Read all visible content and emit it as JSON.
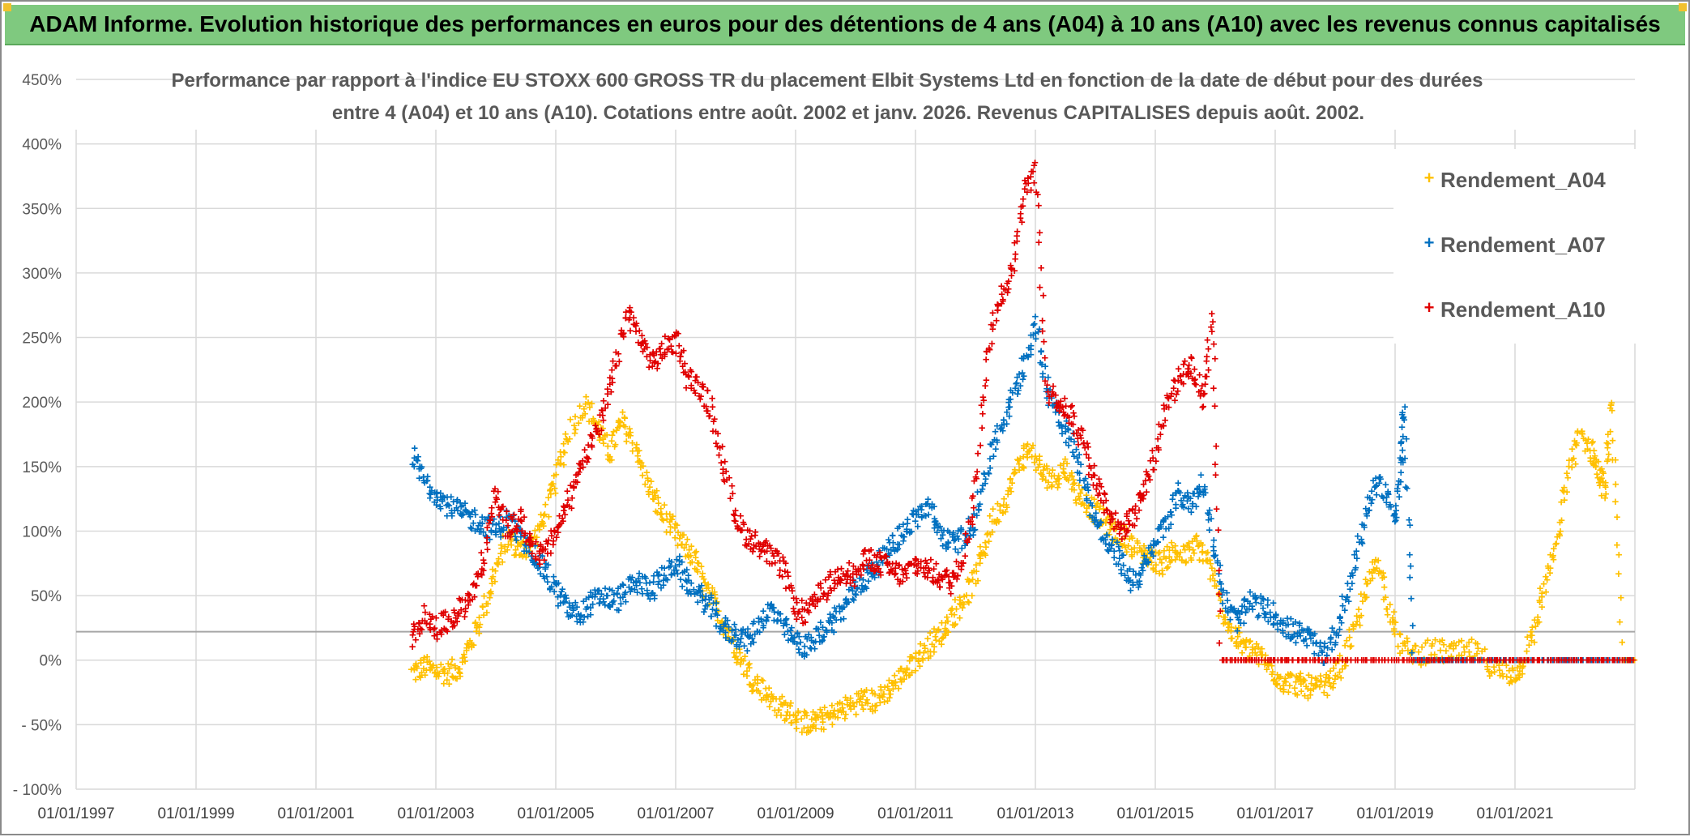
{
  "banner": {
    "title": "ADAM Informe. Evolution historique des performances en euros pour des détentions de 4 ans (A04) à 10 ans (A10) avec les revenus connus capitalisés"
  },
  "colors": {
    "banner_bg": "#7fc97f",
    "A04": "#ffc000",
    "A07": "#0070c0",
    "A10": "#e00000",
    "grid": "#d9d9d9",
    "reference_line": "#a6a6a6"
  },
  "chart_data": {
    "type": "scatter",
    "title_line1": "Performance par rapport à l'indice EU STOXX 600 GROSS TR  du placement Elbit Systems Ltd en fonction de la date de début pour des durées",
    "title_line2": "entre 4 (A04) et 10 ans (A10). Cotations entre août. 2002 et janv. 2026. Revenus CAPITALISES depuis août. 2002.",
    "xlabel": "",
    "ylabel": "",
    "x_range": [
      1997.0,
      2023.0
    ],
    "x_ticks": [
      1997,
      1999,
      2001,
      2003,
      2005,
      2007,
      2009,
      2011,
      2013,
      2015,
      2017,
      2019,
      2021
    ],
    "x_tick_labels": [
      "01/01/1997",
      "01/01/1999",
      "01/01/2001",
      "01/01/2003",
      "01/01/2005",
      "01/01/2007",
      "01/01/2009",
      "01/01/2011",
      "01/01/2013",
      "01/01/2015",
      "01/01/2017",
      "01/01/2019",
      "01/01/2021"
    ],
    "ylim": [
      -100,
      450
    ],
    "y_ticks": [
      -100,
      -50,
      0,
      50,
      100,
      150,
      200,
      250,
      300,
      350,
      400,
      450
    ],
    "y_tick_labels": [
      "- 100%",
      "- 50%",
      "0%",
      "50%",
      "100%",
      "150%",
      "200%",
      "250%",
      "300%",
      "350%",
      "400%",
      "450%"
    ],
    "reference_value": 22,
    "grid": true,
    "legend_position": "top-right",
    "series": [
      {
        "name": "Rendement_A04",
        "key": "A04",
        "points": [
          [
            2002.6,
            -10
          ],
          [
            2002.8,
            -5
          ],
          [
            2003.0,
            -8
          ],
          [
            2003.2,
            -10
          ],
          [
            2003.4,
            -5
          ],
          [
            2003.6,
            15
          ],
          [
            2003.8,
            40
          ],
          [
            2004.0,
            70
          ],
          [
            2004.2,
            95
          ],
          [
            2004.4,
            85
          ],
          [
            2004.6,
            90
          ],
          [
            2004.8,
            110
          ],
          [
            2005.0,
            140
          ],
          [
            2005.2,
            175
          ],
          [
            2005.5,
            200
          ],
          [
            2005.7,
            180
          ],
          [
            2005.9,
            160
          ],
          [
            2006.1,
            185
          ],
          [
            2006.3,
            170
          ],
          [
            2006.5,
            140
          ],
          [
            2006.7,
            120
          ],
          [
            2006.9,
            105
          ],
          [
            2007.1,
            90
          ],
          [
            2007.3,
            80
          ],
          [
            2007.5,
            55
          ],
          [
            2007.7,
            40
          ],
          [
            2007.9,
            20
          ],
          [
            2008.1,
            0
          ],
          [
            2008.3,
            -15
          ],
          [
            2008.5,
            -25
          ],
          [
            2008.7,
            -35
          ],
          [
            2008.9,
            -40
          ],
          [
            2009.1,
            -48
          ],
          [
            2009.3,
            -48
          ],
          [
            2009.5,
            -45
          ],
          [
            2009.7,
            -40
          ],
          [
            2009.9,
            -35
          ],
          [
            2010.1,
            -30
          ],
          [
            2010.3,
            -32
          ],
          [
            2010.5,
            -25
          ],
          [
            2010.7,
            -15
          ],
          [
            2010.9,
            -5
          ],
          [
            2011.1,
            5
          ],
          [
            2011.3,
            15
          ],
          [
            2011.5,
            25
          ],
          [
            2011.7,
            40
          ],
          [
            2011.9,
            55
          ],
          [
            2012.1,
            80
          ],
          [
            2012.3,
            110
          ],
          [
            2012.5,
            125
          ],
          [
            2012.7,
            150
          ],
          [
            2012.9,
            165
          ],
          [
            2013.1,
            145
          ],
          [
            2013.3,
            140
          ],
          [
            2013.5,
            150
          ],
          [
            2013.7,
            130
          ],
          [
            2013.9,
            120
          ],
          [
            2014.1,
            110
          ],
          [
            2014.3,
            100
          ],
          [
            2014.5,
            95
          ],
          [
            2014.7,
            85
          ],
          [
            2014.9,
            80
          ],
          [
            2015.1,
            75
          ],
          [
            2015.3,
            85
          ],
          [
            2015.5,
            80
          ],
          [
            2015.7,
            90
          ],
          [
            2015.9,
            75
          ],
          [
            2016.1,
            40
          ],
          [
            2016.3,
            20
          ],
          [
            2016.5,
            10
          ],
          [
            2016.7,
            5
          ],
          [
            2016.9,
            -5
          ],
          [
            2017.1,
            -15
          ],
          [
            2017.3,
            -18
          ],
          [
            2017.5,
            -20
          ],
          [
            2017.7,
            -22
          ],
          [
            2017.9,
            -18
          ],
          [
            2018.1,
            -5
          ],
          [
            2018.3,
            20
          ],
          [
            2018.5,
            50
          ],
          [
            2018.7,
            80
          ],
          [
            2018.9,
            40
          ],
          [
            2019.1,
            10
          ],
          [
            2019.4,
            5
          ],
          [
            2019.7,
            8
          ],
          [
            2020.0,
            5
          ],
          [
            2020.3,
            8
          ],
          [
            2020.6,
            -5
          ],
          [
            2020.9,
            -12
          ],
          [
            2021.1,
            -5
          ],
          [
            2021.3,
            20
          ],
          [
            2021.5,
            60
          ],
          [
            2021.7,
            90
          ],
          [
            2021.9,
            150
          ],
          [
            2022.1,
            175
          ],
          [
            2022.3,
            160
          ],
          [
            2022.4,
            145
          ],
          [
            2022.5,
            130
          ],
          [
            2022.6,
            205
          ],
          [
            2022.8,
            0
          ],
          [
            2023.0,
            0
          ]
        ]
      },
      {
        "name": "Rendement_A07",
        "key": "A07",
        "points": [
          [
            2002.6,
            160
          ],
          [
            2002.8,
            140
          ],
          [
            2003.0,
            130
          ],
          [
            2003.2,
            120
          ],
          [
            2003.4,
            115
          ],
          [
            2003.6,
            110
          ],
          [
            2003.8,
            105
          ],
          [
            2004.0,
            100
          ],
          [
            2004.2,
            110
          ],
          [
            2004.4,
            95
          ],
          [
            2004.6,
            85
          ],
          [
            2004.8,
            70
          ],
          [
            2005.0,
            55
          ],
          [
            2005.2,
            40
          ],
          [
            2005.4,
            35
          ],
          [
            2005.6,
            45
          ],
          [
            2005.8,
            50
          ],
          [
            2006.0,
            45
          ],
          [
            2006.2,
            55
          ],
          [
            2006.4,
            60
          ],
          [
            2006.6,
            55
          ],
          [
            2006.8,
            65
          ],
          [
            2007.0,
            75
          ],
          [
            2007.2,
            60
          ],
          [
            2007.4,
            50
          ],
          [
            2007.6,
            40
          ],
          [
            2007.8,
            25
          ],
          [
            2008.0,
            20
          ],
          [
            2008.2,
            15
          ],
          [
            2008.4,
            30
          ],
          [
            2008.6,
            40
          ],
          [
            2008.8,
            25
          ],
          [
            2009.0,
            15
          ],
          [
            2009.2,
            10
          ],
          [
            2009.4,
            20
          ],
          [
            2009.6,
            30
          ],
          [
            2009.8,
            40
          ],
          [
            2010.0,
            55
          ],
          [
            2010.2,
            65
          ],
          [
            2010.4,
            75
          ],
          [
            2010.6,
            90
          ],
          [
            2010.8,
            100
          ],
          [
            2011.0,
            110
          ],
          [
            2011.2,
            120
          ],
          [
            2011.4,
            100
          ],
          [
            2011.6,
            90
          ],
          [
            2011.8,
            95
          ],
          [
            2012.0,
            110
          ],
          [
            2012.2,
            150
          ],
          [
            2012.4,
            180
          ],
          [
            2012.6,
            200
          ],
          [
            2012.8,
            230
          ],
          [
            2013.0,
            260
          ],
          [
            2013.2,
            210
          ],
          [
            2013.4,
            190
          ],
          [
            2013.6,
            170
          ],
          [
            2013.8,
            140
          ],
          [
            2014.0,
            110
          ],
          [
            2014.2,
            90
          ],
          [
            2014.4,
            80
          ],
          [
            2014.6,
            60
          ],
          [
            2014.8,
            70
          ],
          [
            2015.0,
            90
          ],
          [
            2015.2,
            110
          ],
          [
            2015.4,
            130
          ],
          [
            2015.6,
            120
          ],
          [
            2015.8,
            140
          ],
          [
            2016.0,
            80
          ],
          [
            2016.2,
            40
          ],
          [
            2016.4,
            30
          ],
          [
            2016.6,
            45
          ],
          [
            2016.8,
            40
          ],
          [
            2017.0,
            35
          ],
          [
            2017.2,
            25
          ],
          [
            2017.4,
            20
          ],
          [
            2017.6,
            15
          ],
          [
            2017.8,
            5
          ],
          [
            2018.0,
            20
          ],
          [
            2018.2,
            50
          ],
          [
            2018.4,
            90
          ],
          [
            2018.6,
            130
          ],
          [
            2018.8,
            135
          ],
          [
            2019.0,
            110
          ],
          [
            2019.1,
            150
          ],
          [
            2019.15,
            195
          ],
          [
            2019.3,
            0
          ],
          [
            2019.6,
            0
          ],
          [
            2020.0,
            0
          ],
          [
            2020.5,
            0
          ],
          [
            2021.0,
            0
          ],
          [
            2021.5,
            0
          ],
          [
            2022.0,
            0
          ],
          [
            2022.5,
            0
          ],
          [
            2023.0,
            0
          ]
        ]
      },
      {
        "name": "Rendement_A10",
        "key": "A10",
        "points": [
          [
            2002.6,
            15
          ],
          [
            2002.8,
            35
          ],
          [
            2003.0,
            25
          ],
          [
            2003.2,
            30
          ],
          [
            2003.4,
            40
          ],
          [
            2003.6,
            50
          ],
          [
            2003.8,
            80
          ],
          [
            2004.0,
            130
          ],
          [
            2004.2,
            100
          ],
          [
            2004.4,
            110
          ],
          [
            2004.6,
            90
          ],
          [
            2004.8,
            80
          ],
          [
            2005.0,
            100
          ],
          [
            2005.2,
            120
          ],
          [
            2005.4,
            150
          ],
          [
            2005.6,
            170
          ],
          [
            2005.8,
            190
          ],
          [
            2006.0,
            230
          ],
          [
            2006.2,
            270
          ],
          [
            2006.4,
            250
          ],
          [
            2006.6,
            230
          ],
          [
            2006.8,
            240
          ],
          [
            2007.0,
            250
          ],
          [
            2007.2,
            220
          ],
          [
            2007.4,
            210
          ],
          [
            2007.6,
            195
          ],
          [
            2007.8,
            150
          ],
          [
            2008.0,
            110
          ],
          [
            2008.2,
            95
          ],
          [
            2008.4,
            90
          ],
          [
            2008.6,
            80
          ],
          [
            2008.8,
            70
          ],
          [
            2009.0,
            40
          ],
          [
            2009.2,
            35
          ],
          [
            2009.4,
            50
          ],
          [
            2009.6,
            60
          ],
          [
            2009.8,
            70
          ],
          [
            2010.0,
            65
          ],
          [
            2010.2,
            80
          ],
          [
            2010.4,
            75
          ],
          [
            2010.6,
            70
          ],
          [
            2010.8,
            65
          ],
          [
            2011.0,
            75
          ],
          [
            2011.2,
            70
          ],
          [
            2011.4,
            65
          ],
          [
            2011.6,
            60
          ],
          [
            2011.8,
            80
          ],
          [
            2012.0,
            130
          ],
          [
            2012.2,
            240
          ],
          [
            2012.4,
            280
          ],
          [
            2012.6,
            300
          ],
          [
            2012.8,
            360
          ],
          [
            2013.0,
            380
          ],
          [
            2013.2,
            210
          ],
          [
            2013.4,
            200
          ],
          [
            2013.6,
            190
          ],
          [
            2013.8,
            170
          ],
          [
            2014.0,
            140
          ],
          [
            2014.2,
            120
          ],
          [
            2014.4,
            100
          ],
          [
            2014.6,
            110
          ],
          [
            2014.8,
            130
          ],
          [
            2015.0,
            160
          ],
          [
            2015.2,
            200
          ],
          [
            2015.4,
            220
          ],
          [
            2015.6,
            230
          ],
          [
            2015.8,
            200
          ],
          [
            2015.95,
            270
          ],
          [
            2016.1,
            0
          ],
          [
            2016.5,
            0
          ],
          [
            2017.0,
            0
          ],
          [
            2017.5,
            0
          ],
          [
            2018.0,
            0
          ],
          [
            2018.5,
            0
          ],
          [
            2019.0,
            0
          ],
          [
            2019.5,
            0
          ],
          [
            2020.0,
            0
          ],
          [
            2020.5,
            0
          ],
          [
            2021.0,
            0
          ],
          [
            2021.5,
            0
          ],
          [
            2022.0,
            0
          ],
          [
            2022.5,
            0
          ],
          [
            2023.0,
            0
          ]
        ]
      }
    ]
  }
}
